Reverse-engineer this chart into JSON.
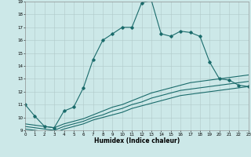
{
  "xlabel": "Humidex (Indice chaleur)",
  "ylabel": "",
  "background_color": "#cce8e8",
  "grid_color": "#b0c8c8",
  "line_color": "#1a6b6b",
  "xlim": [
    0,
    23
  ],
  "ylim": [
    9,
    19
  ],
  "yticks": [
    9,
    10,
    11,
    12,
    13,
    14,
    15,
    16,
    17,
    18,
    19
  ],
  "xticks": [
    0,
    1,
    2,
    3,
    4,
    5,
    6,
    7,
    8,
    9,
    10,
    11,
    12,
    13,
    14,
    15,
    16,
    17,
    18,
    19,
    20,
    21,
    22,
    23
  ],
  "series": [
    {
      "x": [
        0,
        1,
        2,
        3,
        4,
        5,
        6,
        7,
        8,
        9,
        10,
        11,
        12,
        13,
        14,
        15,
        16,
        17,
        18,
        19,
        20,
        21,
        22,
        23
      ],
      "y": [
        11.0,
        10.1,
        9.3,
        9.2,
        10.5,
        10.8,
        12.3,
        14.5,
        16.0,
        16.5,
        17.0,
        17.0,
        18.9,
        19.1,
        16.5,
        16.3,
        16.7,
        16.6,
        16.3,
        14.3,
        13.0,
        12.9,
        12.5,
        12.4
      ],
      "marker": "D",
      "linewidth": 0.8,
      "markersize": 1.8
    },
    {
      "x": [
        0,
        1,
        2,
        3,
        4,
        5,
        6,
        7,
        8,
        9,
        10,
        11,
        12,
        13,
        14,
        15,
        16,
        17,
        18,
        19,
        20,
        21,
        22,
        23
      ],
      "y": [
        9.5,
        9.4,
        9.3,
        9.2,
        9.5,
        9.7,
        9.9,
        10.2,
        10.5,
        10.8,
        11.0,
        11.3,
        11.6,
        11.9,
        12.1,
        12.3,
        12.5,
        12.7,
        12.8,
        12.9,
        13.0,
        13.1,
        13.2,
        13.3
      ],
      "marker": null,
      "linewidth": 0.8,
      "markersize": 0
    },
    {
      "x": [
        0,
        1,
        2,
        3,
        4,
        5,
        6,
        7,
        8,
        9,
        10,
        11,
        12,
        13,
        14,
        15,
        16,
        17,
        18,
        19,
        20,
        21,
        22,
        23
      ],
      "y": [
        9.3,
        9.2,
        9.1,
        9.0,
        9.3,
        9.5,
        9.7,
        10.0,
        10.2,
        10.5,
        10.7,
        11.0,
        11.2,
        11.5,
        11.7,
        11.9,
        12.1,
        12.2,
        12.3,
        12.4,
        12.5,
        12.6,
        12.7,
        12.8
      ],
      "marker": null,
      "linewidth": 0.8,
      "markersize": 0
    },
    {
      "x": [
        0,
        1,
        2,
        3,
        4,
        5,
        6,
        7,
        8,
        9,
        10,
        11,
        12,
        13,
        14,
        15,
        16,
        17,
        18,
        19,
        20,
        21,
        22,
        23
      ],
      "y": [
        9.1,
        9.0,
        8.9,
        8.8,
        9.1,
        9.3,
        9.5,
        9.8,
        10.0,
        10.2,
        10.4,
        10.7,
        10.9,
        11.1,
        11.3,
        11.5,
        11.7,
        11.8,
        11.9,
        12.0,
        12.1,
        12.2,
        12.3,
        12.4
      ],
      "marker": null,
      "linewidth": 0.8,
      "markersize": 0
    }
  ]
}
